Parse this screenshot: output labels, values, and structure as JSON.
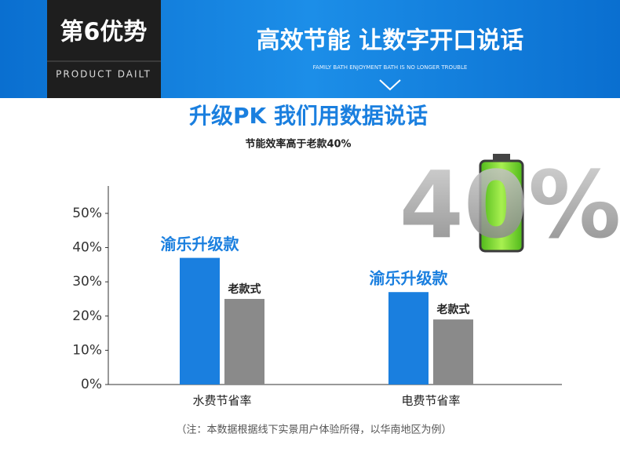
{
  "header": {
    "badge_title": "第6优势",
    "badge_subtitle": "PRODUCT DAILT",
    "headline": "高效节能 让数字开口说话",
    "tagline": "FAMILY BATH ENJOYMENT BATH IS NO LONGER TROUBLE"
  },
  "chart_data": {
    "type": "bar",
    "title": "升级PK 我们用数据说话",
    "subtitle": "节能效率高于老款40%",
    "graphic_text": "40%",
    "categories": [
      "水费节省率",
      "电费节省率"
    ],
    "series": [
      {
        "name": "渝乐升级款",
        "color": "#1a7fdf",
        "values": [
          37,
          27
        ]
      },
      {
        "name": "老款式",
        "color": "#8a8a8a",
        "values": [
          25,
          19
        ]
      }
    ],
    "ylim": [
      0,
      58
    ],
    "yticks": [
      {
        "value": 0,
        "label": "0%"
      },
      {
        "value": 10,
        "label": "10%"
      },
      {
        "value": 20,
        "label": "20%"
      },
      {
        "value": 30,
        "label": "30%"
      },
      {
        "value": 40,
        "label": "40%"
      },
      {
        "value": 50,
        "label": "50%"
      }
    ],
    "grid": false
  },
  "footnote": "（注：本数据根据线下实景用户体验所得，以华南地区为例）"
}
